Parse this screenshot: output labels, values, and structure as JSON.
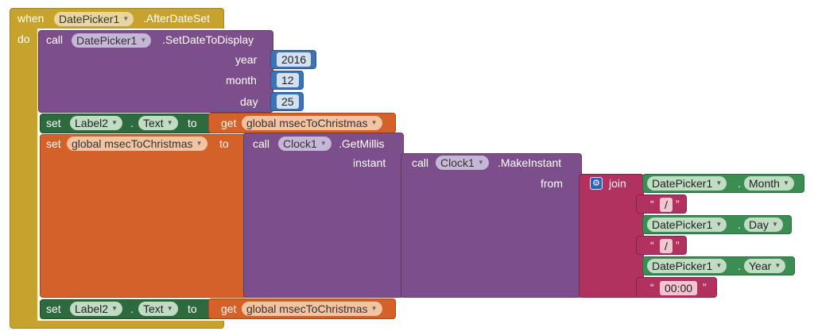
{
  "event": {
    "when_label": "when",
    "component": "DatePicker1",
    "event_name": ".AfterDateSet",
    "do_label": "do"
  },
  "call1": {
    "call_label": "call",
    "component": "DatePicker1",
    "method": ".SetDateToDisplay",
    "year_label": "year",
    "year_value": "2016",
    "month_label": "month",
    "month_value": "12",
    "day_label": "day",
    "day_value": "25"
  },
  "set_label_top": {
    "set_label": "set",
    "component": "Label2",
    "dot": ".",
    "property": "Text",
    "to_label": "to",
    "get_label": "get",
    "variable": "global msecToChristmas"
  },
  "set_global": {
    "set_label": "set",
    "variable": "global msecToChristmas",
    "to_label": "to"
  },
  "getmillis": {
    "call_label": "call",
    "component": "Clock1",
    "method": ".GetMillis",
    "instant_label": "instant"
  },
  "makeinstant": {
    "call_label": "call",
    "component": "Clock1",
    "method": ".MakeInstant",
    "from_label": "from"
  },
  "join": {
    "label": "join",
    "gear_icon": "gear-icon",
    "month": {
      "component": "DatePicker1",
      "dot": ".",
      "property": "Month"
    },
    "slash1": {
      "open": "“",
      "value": "/",
      "close": "”"
    },
    "day": {
      "component": "DatePicker1",
      "dot": ".",
      "property": "Day"
    },
    "slash2": {
      "open": "“",
      "value": "/",
      "close": "”"
    },
    "year": {
      "component": "DatePicker1",
      "dot": ".",
      "property": "Year"
    },
    "time": {
      "open": "“",
      "value": "00:00",
      "close": "”"
    }
  },
  "set_label_bottom": {
    "set_label": "set",
    "component": "Label2",
    "dot": ".",
    "property": "Text",
    "to_label": "to",
    "get_label": "get",
    "variable": "global msecToChristmas"
  },
  "dropdown_arrow": "▼",
  "colors": {
    "event": "#c7a22c",
    "procedure": "#7c4f8a",
    "component_set": "#2d6a3e",
    "variable": "#d4602a",
    "math": "#3f71b5",
    "text": "#b1325f",
    "getter": "#3b8d54"
  }
}
